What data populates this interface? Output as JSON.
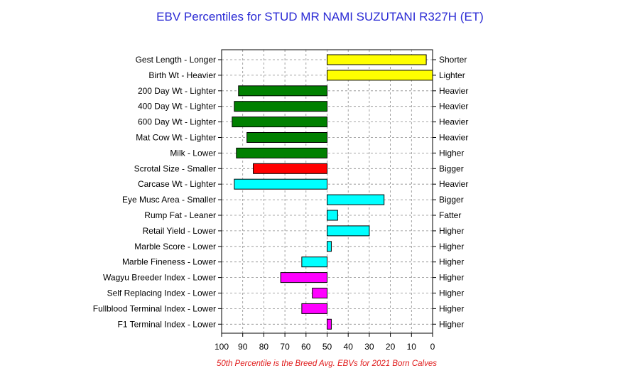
{
  "chart_data": {
    "type": "bar",
    "title": "EBV Percentiles for STUD MR NAMI SUZUTANI R327H (ET)",
    "orientation": "horizontal",
    "xlim": [
      100,
      0
    ],
    "x_ticks": [
      "100",
      "90",
      "80",
      "70",
      "60",
      "50",
      "40",
      "30",
      "20",
      "10",
      "0"
    ],
    "grid": true,
    "reference_percentile": 50,
    "traits": [
      {
        "left": "Gest Length - Longer",
        "right": "Shorter",
        "percentile": 3,
        "color": "#ffff00"
      },
      {
        "left": "Birth Wt - Heavier",
        "right": "Lighter",
        "percentile": 0,
        "color": "#ffff00"
      },
      {
        "left": "200 Day Wt - Lighter",
        "right": "Heavier",
        "percentile": 92,
        "color": "#008000"
      },
      {
        "left": "400 Day Wt - Lighter",
        "right": "Heavier",
        "percentile": 94,
        "color": "#008000"
      },
      {
        "left": "600 Day Wt - Lighter",
        "right": "Heavier",
        "percentile": 95,
        "color": "#008000"
      },
      {
        "left": "Mat Cow Wt - Lighter",
        "right": "Heavier",
        "percentile": 88,
        "color": "#008000"
      },
      {
        "left": "Milk - Lower",
        "right": "Higher",
        "percentile": 93,
        "color": "#008000"
      },
      {
        "left": "Scrotal Size - Smaller",
        "right": "Bigger",
        "percentile": 85,
        "color": "#ff0000"
      },
      {
        "left": "Carcase Wt - Lighter",
        "right": "Heavier",
        "percentile": 94,
        "color": "#00ffff"
      },
      {
        "left": "Eye Musc Area - Smaller",
        "right": "Bigger",
        "percentile": 23,
        "color": "#00ffff"
      },
      {
        "left": "Rump Fat - Leaner",
        "right": "Fatter",
        "percentile": 45,
        "color": "#00ffff"
      },
      {
        "left": "Retail Yield - Lower",
        "right": "Higher",
        "percentile": 30,
        "color": "#00ffff"
      },
      {
        "left": "Marble Score - Lower",
        "right": "Higher",
        "percentile": 48,
        "color": "#00ffff"
      },
      {
        "left": "Marble Fineness - Lower",
        "right": "Higher",
        "percentile": 62,
        "color": "#00ffff"
      },
      {
        "left": "Wagyu Breeder Index - Lower",
        "right": "Higher",
        "percentile": 72,
        "color": "#ff00ff"
      },
      {
        "left": "Self Replacing Index - Lower",
        "right": "Higher",
        "percentile": 57,
        "color": "#ff00ff"
      },
      {
        "left": "Fullblood Terminal Index - Lower",
        "right": "Higher",
        "percentile": 62,
        "color": "#ff00ff"
      },
      {
        "left": "F1 Terminal Index - Lower",
        "right": "Higher",
        "percentile": 48,
        "color": "#ff00ff"
      }
    ],
    "footnote": "50th Percentile is the Breed Avg. EBVs for 2021 Born Calves"
  }
}
